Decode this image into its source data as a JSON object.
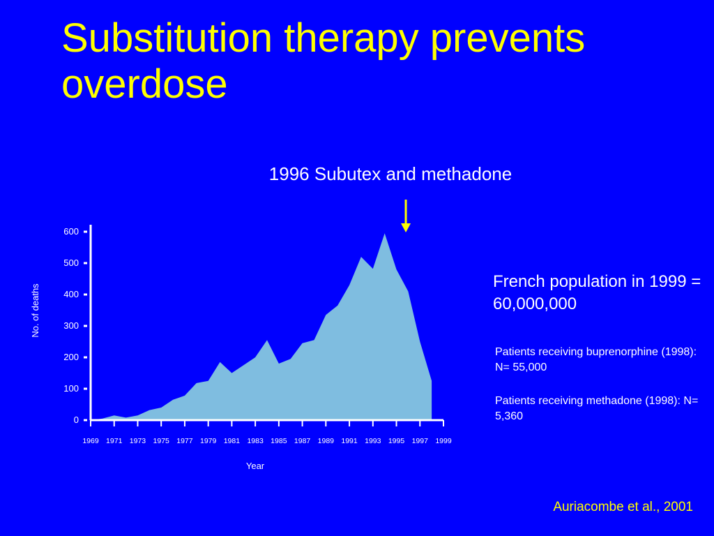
{
  "slide": {
    "title": "Substitution therapy prevents overdose",
    "citation": "Auriacombe et al., 2001"
  },
  "annotation": {
    "label": "1996 Subutex and methadone"
  },
  "info": {
    "population": "French population in 1999 = 60,000,000",
    "buprenorphine": "Patients receiving buprenorphine (1998): N= 55,000",
    "methadone": "Patients receiving methadone (1998): N= 5,360"
  },
  "colors": {
    "background": "#0000ff",
    "title": "#ffff00",
    "area_fill": "#7fbde0",
    "arrow": "#ffff00",
    "text": "#ffffff"
  },
  "chart_data": {
    "type": "area",
    "xlabel": "Year",
    "ylabel": "No. of deaths",
    "xlim": [
      1969,
      1999
    ],
    "ylim": [
      0,
      600
    ],
    "x_ticks": [
      1969,
      1971,
      1973,
      1975,
      1977,
      1979,
      1981,
      1983,
      1985,
      1987,
      1989,
      1991,
      1993,
      1995,
      1997,
      1999
    ],
    "y_ticks": [
      0,
      100,
      200,
      300,
      400,
      500,
      600
    ],
    "annotation_year": 1996,
    "series": [
      {
        "x": [
          1969,
          1970,
          1971,
          1972,
          1973,
          1974,
          1975,
          1976,
          1977,
          1978,
          1979,
          1980,
          1981,
          1982,
          1983,
          1984,
          1985,
          1986,
          1987,
          1988,
          1989,
          1990,
          1991,
          1992,
          1993,
          1994,
          1995,
          1996,
          1997,
          1998
        ],
        "values": [
          0,
          5,
          15,
          8,
          15,
          32,
          40,
          65,
          78,
          118,
          125,
          185,
          150,
          175,
          200,
          255,
          180,
          195,
          245,
          255,
          335,
          365,
          430,
          520,
          482,
          595,
          480,
          410,
          250,
          125
        ]
      }
    ]
  }
}
